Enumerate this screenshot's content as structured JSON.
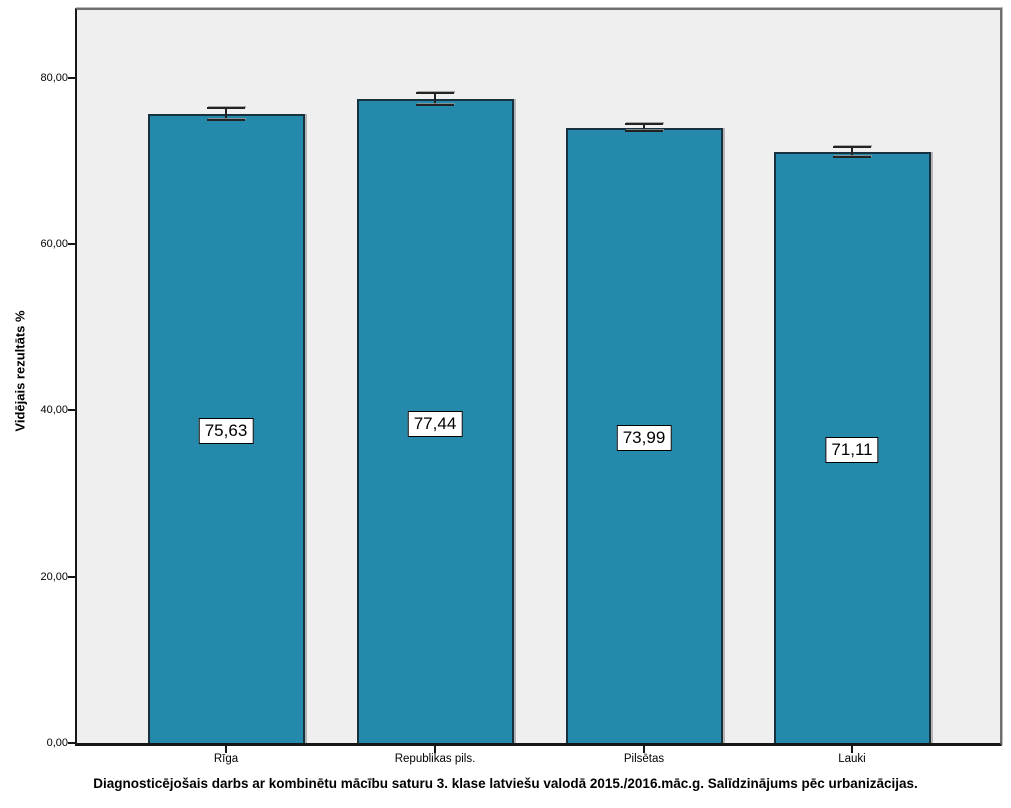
{
  "chart_data": {
    "type": "bar",
    "title": "Diagnosticējošais darbs ar kombinētu mācību saturu 3. klase latviešu valodā 2015./2016.māc.g. Salīdzinājums pēc urbanizācijas.",
    "ylabel": "Vidējais rezultāts %",
    "xlabel": "",
    "categories": [
      "Rīga",
      "Republikas pils.",
      "Pilsētas",
      "Lauki"
    ],
    "values": [
      75.63,
      77.44,
      73.99,
      71.11
    ],
    "value_labels": [
      "75,63",
      "77,44",
      "73,99",
      "71,11"
    ],
    "errors": [
      0.85,
      0.85,
      0.55,
      0.72
    ],
    "ylim": [
      0,
      88.5
    ],
    "yticks": [
      0,
      20,
      40,
      60,
      80
    ],
    "ytick_labels": [
      "0,00",
      "20,00",
      "40,00",
      "60,00",
      "80,00"
    ],
    "grid": false,
    "legend_position": "none",
    "colors": {
      "bar_fill": "#2589ab",
      "bar_stroke": "#17323e",
      "plot_background": "#efefef",
      "error_bar": "#222222",
      "label_box_background": "#ffffff",
      "label_box_border": "#000000"
    }
  }
}
